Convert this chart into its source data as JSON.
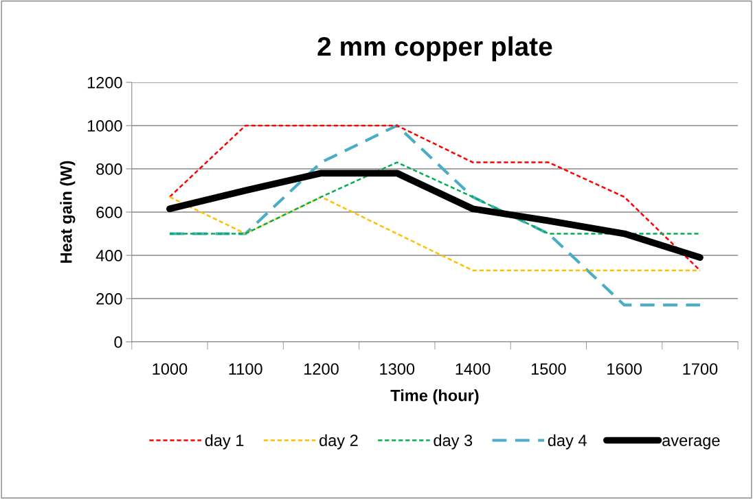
{
  "chart_data": {
    "type": "line",
    "title": "2 mm copper plate",
    "xlabel": "Time (hour)",
    "ylabel": "Heat gain (W)",
    "categories": [
      "1000",
      "1100",
      "1200",
      "1300",
      "1400",
      "1500",
      "1600",
      "1700"
    ],
    "series": [
      {
        "name": "day 1",
        "color": "#ff0000",
        "line_style": "dashed",
        "values": [
          670,
          1000,
          1000,
          1000,
          830,
          830,
          670,
          330
        ]
      },
      {
        "name": "day 2",
        "color": "#ffc000",
        "line_style": "dashed",
        "values": [
          670,
          500,
          670,
          500,
          330,
          330,
          330,
          330
        ]
      },
      {
        "name": "day 3",
        "color": "#00b050",
        "line_style": "dashed",
        "values": [
          500,
          500,
          670,
          830,
          670,
          500,
          500,
          500
        ]
      },
      {
        "name": "day 4",
        "color": "#4bacc6",
        "line_style": "dashed",
        "values": [
          500,
          500,
          830,
          1000,
          670,
          500,
          170,
          170
        ]
      },
      {
        "name": "average",
        "color": "#000000",
        "line_style": "solid",
        "values": [
          615,
          700,
          780,
          780,
          615,
          560,
          500,
          390
        ]
      }
    ],
    "ylim": [
      0,
      1200
    ],
    "yticks": [
      0,
      200,
      400,
      600,
      800,
      1000,
      1200
    ],
    "grid": "y",
    "legend": "bottom",
    "marker": "none"
  }
}
